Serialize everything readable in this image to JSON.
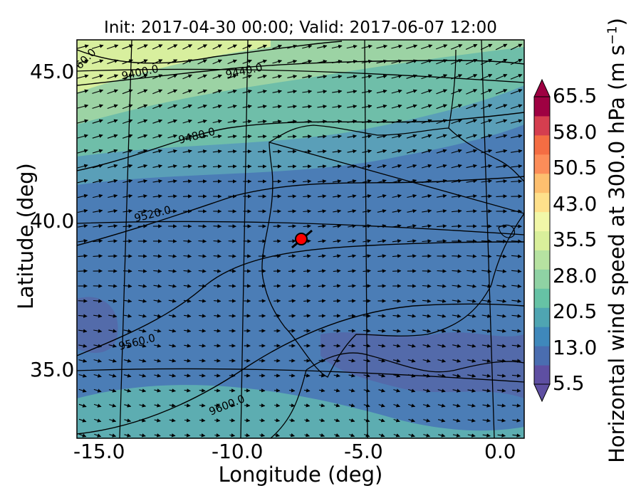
{
  "title": "Init: 2017-04-30 00:00; Valid: 2017-06-07 12:00",
  "xaxis": {
    "label": "Longitude (deg)",
    "range": [
      -15.9,
      0.3
    ],
    "ticks": [
      -15.0,
      -10.0,
      -5.0,
      0.0
    ],
    "tick_labels": [
      "-15.0",
      "-10.0",
      "-5.0",
      "0.0"
    ]
  },
  "yaxis": {
    "label": "Latitude (deg)",
    "range": [
      32.8,
      46.1
    ],
    "ticks": [
      35.0,
      40.0,
      45.0
    ],
    "tick_labels": [
      "35.0",
      "40.0",
      "45.0"
    ]
  },
  "colorbar": {
    "label_main": "Horizontal wind speed at 300.0 hPa (m s",
    "label_sup": "−1",
    "label_end": ")",
    "range": [
      5.5,
      65.5
    ],
    "ticks": [
      5.5,
      13.0,
      20.5,
      28.0,
      35.5,
      43.0,
      50.5,
      58.0,
      65.5
    ],
    "tick_labels": [
      "5.5",
      "13.0",
      "20.5",
      "28.0",
      "35.5",
      "43.0",
      "50.5",
      "58.0",
      "65.5"
    ],
    "colors": [
      "#5e4fa2",
      "#4a6db0",
      "#3f88bb",
      "#4fa5b2",
      "#66c2a5",
      "#8fd2a4",
      "#b6e2a1",
      "#d9ef9b",
      "#f1f7a8",
      "#fee08b",
      "#fdbf6f",
      "#fc8d59",
      "#f46d43",
      "#d53e4f",
      "#9e0142"
    ]
  },
  "contours": [
    {
      "label": "9400.0"
    },
    {
      "label": "9440.0"
    },
    {
      "label": "9480.0"
    },
    {
      "label": "9520.0"
    },
    {
      "label": "9560.0"
    },
    {
      "label": "9600.0"
    },
    {
      "label": "60.0"
    }
  ],
  "marker": {
    "lon": -7.6,
    "lat": 39.3,
    "color": "#ff0000"
  }
}
